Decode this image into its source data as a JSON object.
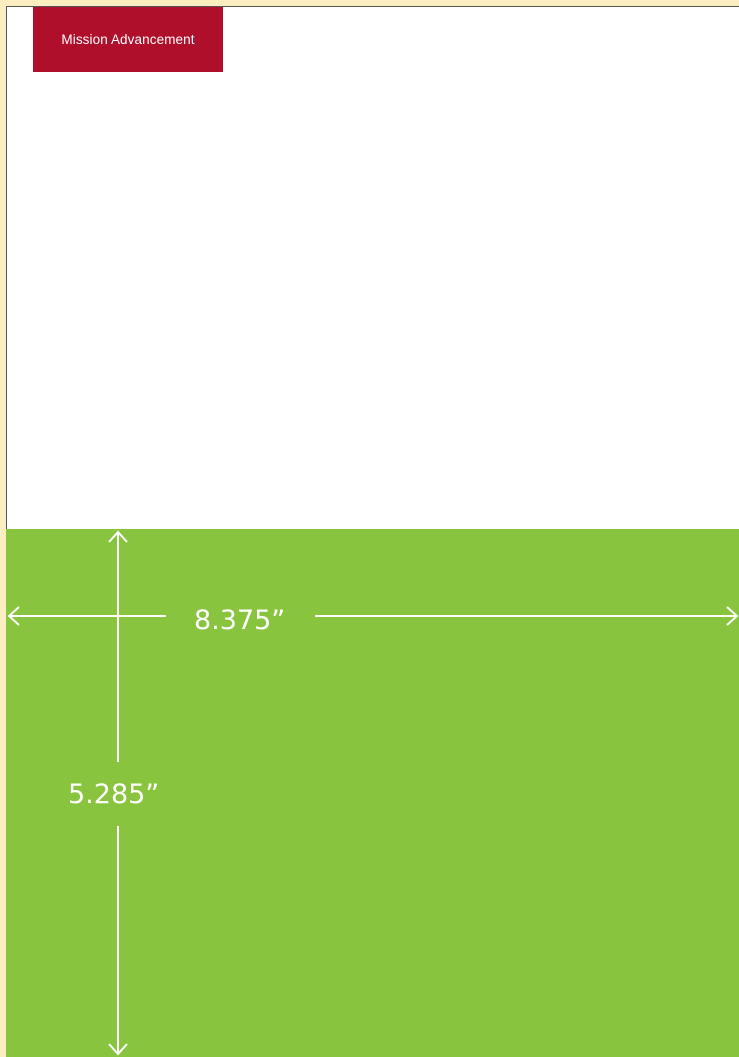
{
  "header": {
    "badge_label": "Mission Advancement"
  },
  "colors": {
    "badge_background": "#b00f2b",
    "panel_background": "#89c43f",
    "outer_background": "#fbeec0",
    "dimension_lines": "#ffffff"
  },
  "dimensions": {
    "width_label": "8.375”",
    "height_label": "5.285”"
  }
}
